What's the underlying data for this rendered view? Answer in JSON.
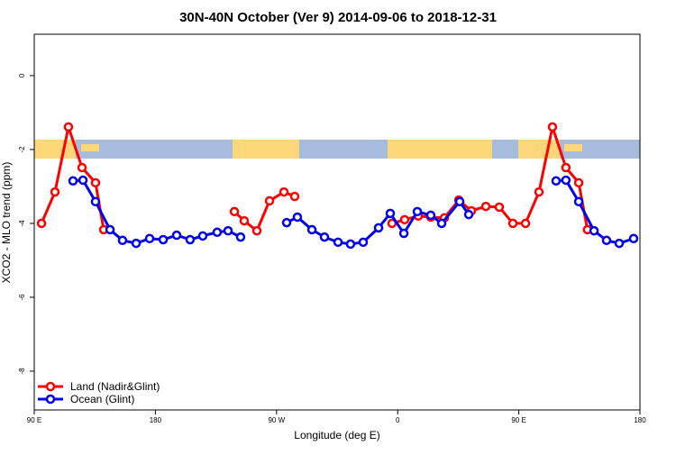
{
  "chart_data": {
    "type": "line",
    "title": "30N-40N October (Ver 9)   2014-09-06 to 2018-12-31",
    "x_label": "Longitude (deg E)",
    "y_label": "XCO2 - MLO trend (ppm)",
    "xlim": [
      90,
      540
    ],
    "ylim": [
      -9.05,
      1.12
    ],
    "xticks": [
      {
        "value": 90,
        "label": "90 E"
      },
      {
        "value": 180,
        "label": "180"
      },
      {
        "value": 270,
        "label": "90 W"
      },
      {
        "value": 360,
        "label": "0"
      },
      {
        "value": 450,
        "label": "90 E"
      },
      {
        "value": 540,
        "label": "180"
      }
    ],
    "yticks": [
      0,
      -2,
      -4,
      -6,
      -8
    ],
    "legend": "bottom-left",
    "series": [
      {
        "name": "Land (Nadir&Glint)",
        "color": "#ff0000",
        "x": [
          95.4,
          105.4,
          115.4,
          125.5,
          135.5,
          141.6,
          null,
          238.7,
          246,
          255.4,
          264.8,
          275.5,
          283.5,
          null,
          355.8,
          365.2,
          375.3,
          384.6,
          394.7,
          405.4,
          414.8,
          425.5,
          435.5,
          445.6,
          455,
          465,
          475,
          485,
          494.5,
          501
        ],
        "values": [
          -4.0,
          -3.15,
          -1.39,
          -2.49,
          -2.9,
          -4.17,
          null,
          -3.68,
          -3.93,
          -4.2,
          -3.39,
          -3.15,
          -3.27,
          null,
          -4.0,
          -3.9,
          -3.8,
          -3.83,
          -3.85,
          -3.37,
          -3.66,
          -3.54,
          -3.56,
          -4.0,
          -4.0,
          -3.15,
          -1.39,
          -2.49,
          -2.9,
          -4.17
        ]
      },
      {
        "name": "Ocean (Glint)",
        "color": "#0000ee",
        "x": [
          118.8,
          126.2,
          135.5,
          146.3,
          155.6,
          165.7,
          175.7,
          185.8,
          195.8,
          205.8,
          215.2,
          225.9,
          234,
          243.3,
          null,
          277.5,
          285.5,
          296.3,
          305.6,
          315.7,
          325,
          334.4,
          345.8,
          354.5,
          364.6,
          374.6,
          384.6,
          392.7,
          406.1,
          412.8,
          null,
          477.7,
          485,
          494.5,
          505.9,
          515.2,
          524.6,
          535.3
        ],
        "values": [
          -2.85,
          -2.83,
          -3.41,
          -4.17,
          -4.46,
          -4.54,
          -4.41,
          -4.44,
          -4.32,
          -4.44,
          -4.34,
          -4.24,
          -4.2,
          -4.37,
          null,
          -3.98,
          -3.83,
          -4.17,
          -4.37,
          -4.51,
          -4.56,
          -4.51,
          -4.12,
          -3.73,
          -4.27,
          -3.68,
          -3.78,
          -4.0,
          -3.41,
          -3.76,
          null,
          -2.85,
          -2.83,
          -3.41,
          -4.2,
          -4.46,
          -4.54,
          -4.41
        ]
      }
    ]
  }
}
